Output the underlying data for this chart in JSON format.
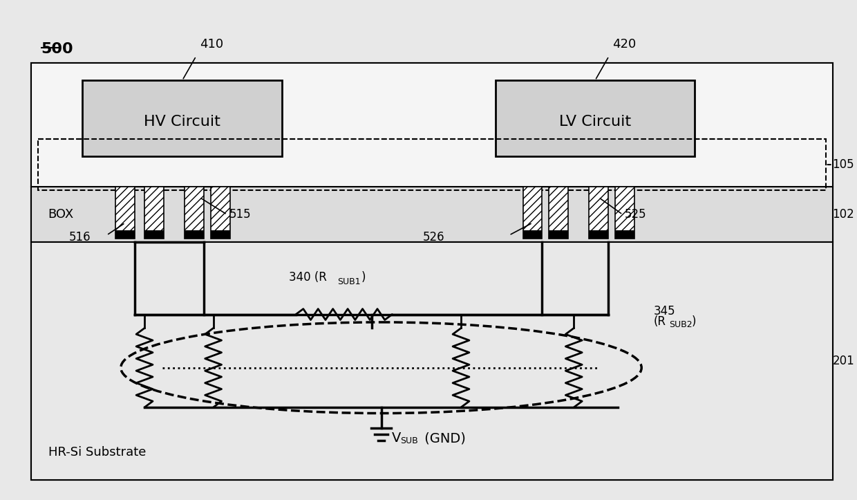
{
  "fig_width": 12.4,
  "fig_height": 7.23,
  "bg_color": "#e8e8e8",
  "label_500": "500",
  "label_105": "105",
  "label_102": "102",
  "label_201": "201",
  "label_410": "410",
  "label_420": "420",
  "label_515": "515",
  "label_516": "516",
  "label_525": "525",
  "label_526": "526",
  "label_340": "340 (R",
  "label_340_sub": "SUB1",
  "label_345": "345",
  "label_345_sub": "(R",
  "label_345_sub2": "SUB2",
  "label_box": "BOX",
  "label_hrsi": "HR-Si Substrate",
  "label_hvcircuit": "HV Circuit",
  "label_lvcircuit": "LV Circuit",
  "label_vsub": "V",
  "label_vsub_sub": "SUB",
  "label_gnd": " (GND)"
}
